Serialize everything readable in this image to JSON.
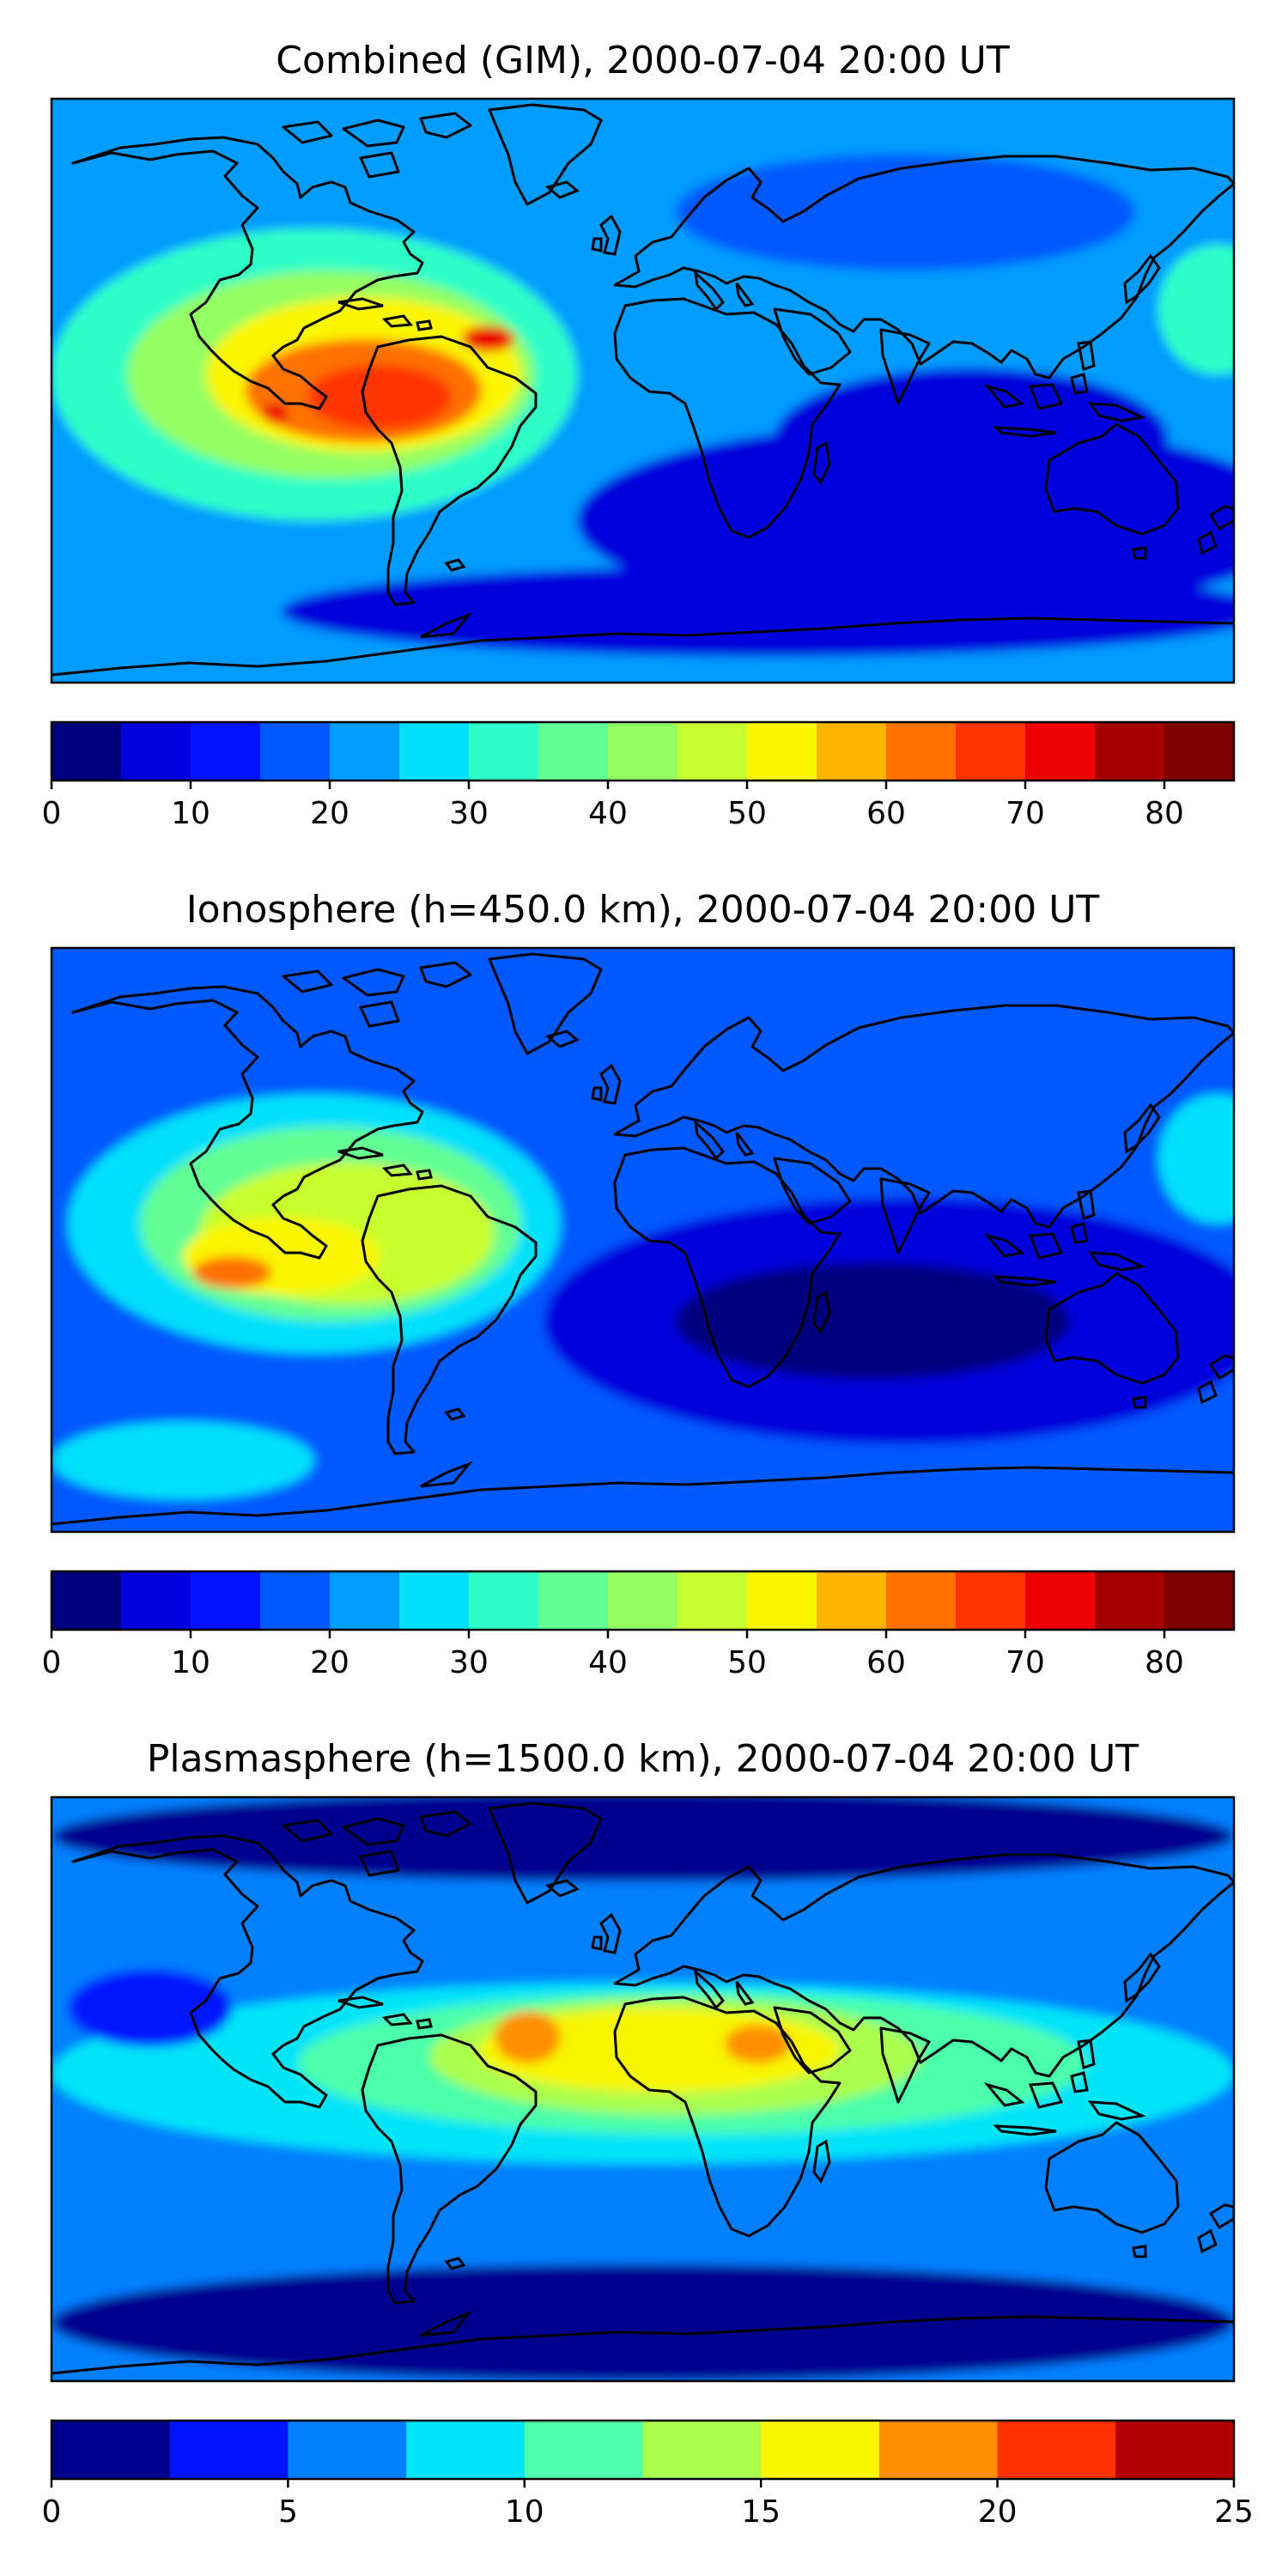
{
  "figure_title": "",
  "chart_data": [
    {
      "type": "heatmap",
      "title": "Combined (GIM), 2000-07-04 20:00 UT",
      "map_extent": {
        "lon": [
          -180,
          180
        ],
        "lat": [
          -90,
          90
        ]
      },
      "colorbar": {
        "levels": [
          0,
          5,
          10,
          15,
          20,
          25,
          30,
          35,
          40,
          45,
          50,
          55,
          60,
          65,
          70,
          75,
          80,
          85
        ],
        "ticks": [
          0,
          10,
          20,
          30,
          40,
          50,
          60,
          70,
          80
        ],
        "tick_labels": [
          "0",
          "10",
          "20",
          "30",
          "40",
          "50",
          "60",
          "70",
          "80"
        ],
        "colors": [
          "#00007f",
          "#0000dc",
          "#0014ff",
          "#0058ff",
          "#009cff",
          "#00e0fb",
          "#2effc8",
          "#62ff94",
          "#94ff62",
          "#c8ff2e",
          "#faf500",
          "#ffb500",
          "#ff7100",
          "#ff3500",
          "#ec0000",
          "#a50000",
          "#7f0000"
        ]
      },
      "features": [
        {
          "name": "background",
          "lon": 0,
          "lat": 0,
          "rx": 180,
          "ry": 90,
          "value": 20
        },
        {
          "name": "antarctic-low",
          "lon": 40,
          "lat": -68,
          "rx": 150,
          "ry": 14,
          "value": 8
        },
        {
          "name": "southern-ocean-low",
          "lon": 90,
          "lat": -40,
          "rx": 110,
          "ry": 30,
          "value": 7
        },
        {
          "name": "indian-ocean-low",
          "lon": 100,
          "lat": -15,
          "rx": 60,
          "ry": 22,
          "value": 9
        },
        {
          "name": "north-asia-low",
          "lon": 80,
          "lat": 55,
          "rx": 70,
          "ry": 18,
          "value": 15
        },
        {
          "name": "north-atlantic",
          "lon": -30,
          "lat": 55,
          "rx": 40,
          "ry": 14,
          "value": 22
        },
        {
          "name": "americas-band",
          "lon": -100,
          "lat": 5,
          "rx": 80,
          "ry": 45,
          "value": 30
        },
        {
          "name": "americas-mid",
          "lon": -95,
          "lat": 5,
          "rx": 62,
          "ry": 32,
          "value": 40
        },
        {
          "name": "americas-inner",
          "lon": -85,
          "lat": 5,
          "rx": 48,
          "ry": 24,
          "value": 50
        },
        {
          "name": "americas-peak-band",
          "lon": -85,
          "lat": 0,
          "rx": 36,
          "ry": 16,
          "value": 60
        },
        {
          "name": "americas-core",
          "lon": -80,
          "lat": -2,
          "rx": 22,
          "ry": 10,
          "value": 65
        },
        {
          "name": "pacific-spot",
          "lon": -112,
          "lat": -7,
          "rx": 4,
          "ry": 3,
          "value": 72
        },
        {
          "name": "brazil-spot",
          "lon": -47,
          "lat": 16,
          "rx": 8,
          "ry": 4,
          "value": 72
        },
        {
          "name": "west-pacific",
          "lon": 175,
          "lat": 25,
          "rx": 18,
          "ry": 20,
          "value": 30
        }
      ]
    },
    {
      "type": "heatmap",
      "title": "Ionosphere  (h=450.0 km), 2000-07-04 20:00 UT",
      "map_extent": {
        "lon": [
          -180,
          180
        ],
        "lat": [
          -90,
          90
        ]
      },
      "colorbar": {
        "levels": [
          0,
          5,
          10,
          15,
          20,
          25,
          30,
          35,
          40,
          45,
          50,
          55,
          60,
          65,
          70,
          75,
          80,
          85
        ],
        "ticks": [
          0,
          10,
          20,
          30,
          40,
          50,
          60,
          70,
          80
        ],
        "tick_labels": [
          "0",
          "10",
          "20",
          "30",
          "40",
          "50",
          "60",
          "70",
          "80"
        ],
        "colors": [
          "#00007f",
          "#0000dc",
          "#0014ff",
          "#0058ff",
          "#009cff",
          "#00e0fb",
          "#2effc8",
          "#62ff94",
          "#94ff62",
          "#c8ff2e",
          "#faf500",
          "#ffb500",
          "#ff7100",
          "#ff3500",
          "#ec0000",
          "#a50000",
          "#7f0000"
        ]
      },
      "features": [
        {
          "name": "background",
          "lon": 0,
          "lat": 0,
          "rx": 180,
          "ry": 90,
          "value": 17
        },
        {
          "name": "africa-australia-low",
          "lon": 80,
          "lat": -25,
          "rx": 110,
          "ry": 38,
          "value": 7
        },
        {
          "name": "deep-low",
          "lon": 70,
          "lat": -25,
          "rx": 60,
          "ry": 18,
          "value": 3
        },
        {
          "name": "asia-low",
          "lon": 80,
          "lat": 55,
          "rx": 50,
          "ry": 16,
          "value": 15
        },
        {
          "name": "americas-band",
          "lon": -100,
          "lat": 5,
          "rx": 75,
          "ry": 40,
          "value": 27
        },
        {
          "name": "americas-mid",
          "lon": -95,
          "lat": 5,
          "rx": 58,
          "ry": 30,
          "value": 37
        },
        {
          "name": "americas-inner",
          "lon": -90,
          "lat": 2,
          "rx": 45,
          "ry": 22,
          "value": 47
        },
        {
          "name": "americas-peak",
          "lon": -110,
          "lat": -5,
          "rx": 30,
          "ry": 12,
          "value": 53
        },
        {
          "name": "americas-core",
          "lon": -125,
          "lat": -10,
          "rx": 12,
          "ry": 5,
          "value": 62
        },
        {
          "name": "west-pacific",
          "lon": 175,
          "lat": 25,
          "rx": 18,
          "ry": 20,
          "value": 28
        },
        {
          "name": "south-pacific",
          "lon": -140,
          "lat": -68,
          "rx": 40,
          "ry": 12,
          "value": 25
        }
      ]
    },
    {
      "type": "heatmap",
      "title": "Plasmasphere (h=1500.0 km), 2000-07-04 20:00 UT",
      "map_extent": {
        "lon": [
          -180,
          180
        ],
        "lat": [
          -90,
          90
        ]
      },
      "colorbar": {
        "levels": [
          0,
          2.5,
          5,
          7.5,
          10,
          12.5,
          15,
          17.5,
          20,
          22.5,
          25
        ],
        "ticks": [
          0,
          5,
          10,
          15,
          20,
          25
        ],
        "tick_labels": [
          "0",
          "5",
          "10",
          "15",
          "20",
          "25"
        ],
        "colors": [
          "#00008f",
          "#0014ff",
          "#0080ff",
          "#00e4f8",
          "#4cffaa",
          "#aaff4d",
          "#f8f500",
          "#ff8f00",
          "#ff3000",
          "#b20000"
        ]
      },
      "features": [
        {
          "name": "background",
          "lon": 0,
          "lat": 0,
          "rx": 180,
          "ry": 90,
          "value": 6
        },
        {
          "name": "north-polar-low",
          "lon": 0,
          "lat": 78,
          "rx": 180,
          "ry": 14,
          "value": 2
        },
        {
          "name": "south-polar-low",
          "lon": 0,
          "lat": -72,
          "rx": 180,
          "ry": 18,
          "value": 2
        },
        {
          "name": "equatorial-band",
          "lon": 0,
          "lat": 5,
          "rx": 180,
          "ry": 28,
          "value": 9
        },
        {
          "name": "equatorial-mid",
          "lon": 15,
          "lat": 8,
          "rx": 120,
          "ry": 22,
          "value": 11
        },
        {
          "name": "africa-band",
          "lon": 10,
          "lat": 10,
          "rx": 75,
          "ry": 18,
          "value": 14
        },
        {
          "name": "africa-inner",
          "lon": 5,
          "lat": 12,
          "rx": 55,
          "ry": 13,
          "value": 16
        },
        {
          "name": "africa-west-core",
          "lon": -35,
          "lat": 16,
          "rx": 10,
          "ry": 8,
          "value": 18
        },
        {
          "name": "africa-east-core",
          "lon": 35,
          "lat": 14,
          "rx": 10,
          "ry": 6,
          "value": 18
        },
        {
          "name": "pacific-low",
          "lon": -150,
          "lat": 25,
          "rx": 25,
          "ry": 12,
          "value": 4
        }
      ]
    }
  ]
}
